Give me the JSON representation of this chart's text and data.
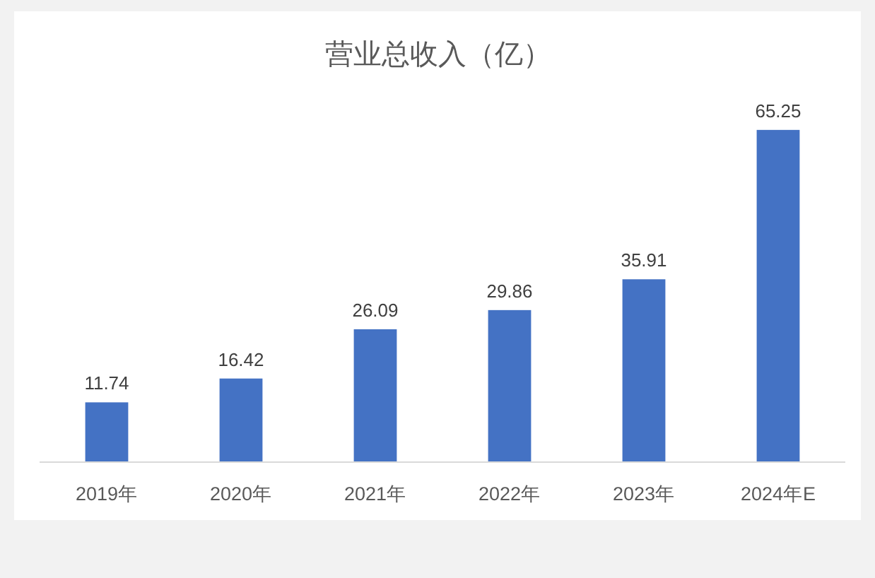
{
  "chart_data": {
    "type": "bar",
    "title": "营业总收入（亿）",
    "categories": [
      "2019年",
      "2020年",
      "2021年",
      "2022年",
      "2023年",
      "2024年E"
    ],
    "values": [
      11.74,
      16.42,
      26.09,
      29.86,
      35.91,
      65.25
    ],
    "color": "#4472c4",
    "data_labels": true
  }
}
